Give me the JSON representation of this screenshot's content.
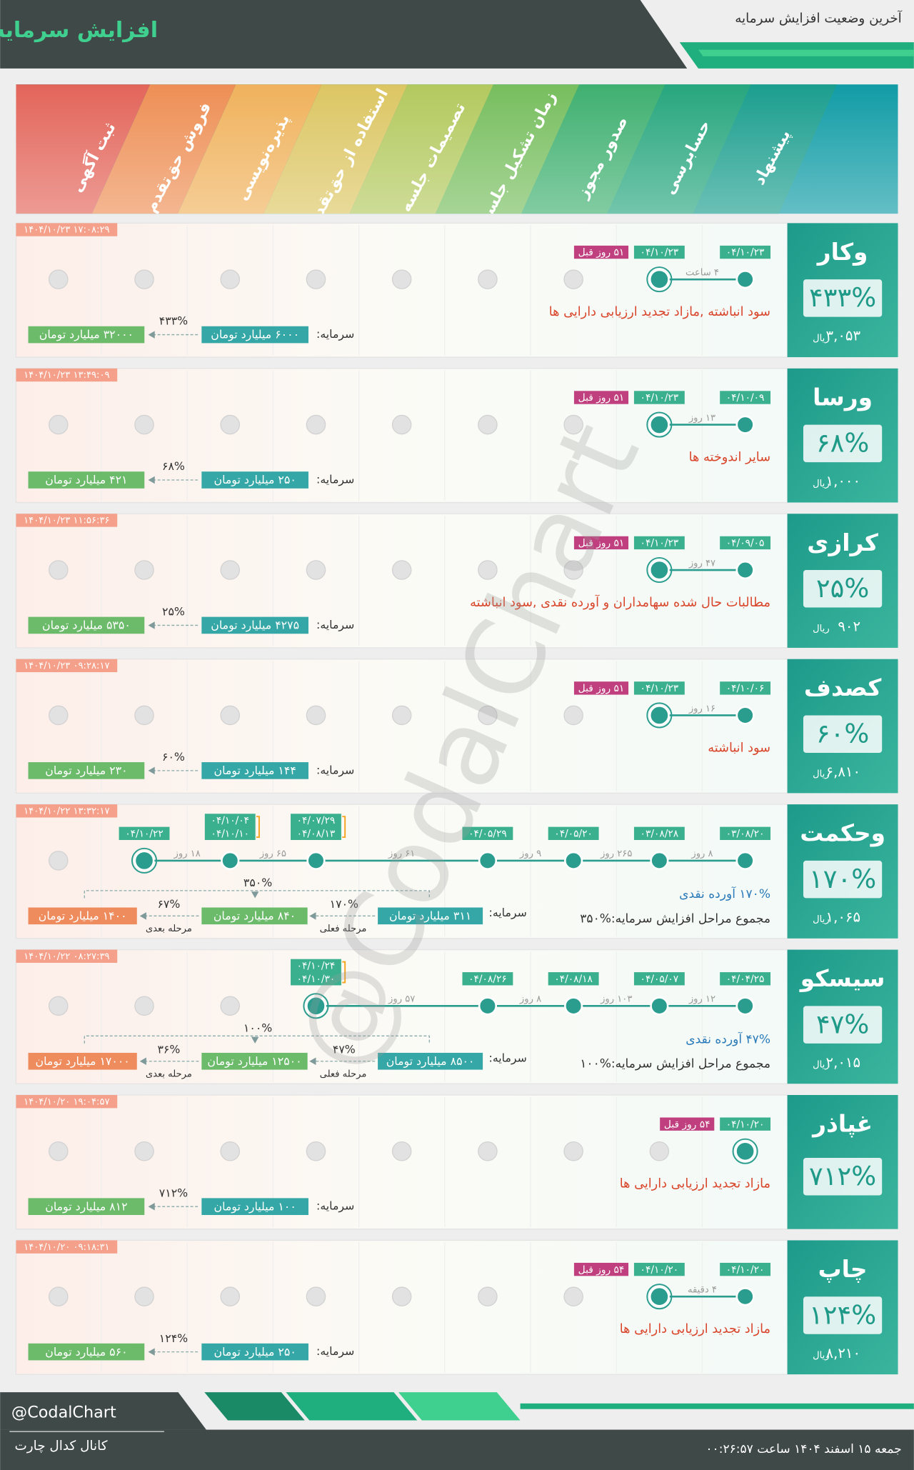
{
  "header": {
    "title": "افزایش سرمایه",
    "subtitle": "آخرین وضعیت افزایش سرمایه"
  },
  "stages": [
    "پیشنهاد",
    "حسابرسی",
    "صدور مجوز",
    "زمان تشکیل جلسه",
    "تصمیمات جلسه",
    "استفاده از حق‌تقدم",
    "پذیره‌نویسی",
    "فروش حق‌تقدم",
    "ثبت آگهی"
  ],
  "labels": {
    "currency": "ریال",
    "capital": "سرمایه:",
    "current_step": "مرحله فعلی",
    "next_step": "مرحله بعدی"
  },
  "cards": [
    {
      "symbol": "وکار",
      "percent": "۴۳۳%",
      "price": "۳,۰۵۳",
      "timestamp": "۱۴۰۴/۱۰/۲۳ ۱۷:۰۸:۲۹",
      "timeline": [
        [
          "۰۴/۱۰/۲۳"
        ],
        [
          "۰۴/۱۰/۲۳"
        ],
        null,
        null,
        null,
        null,
        null,
        null,
        null
      ],
      "ago": "۵۱ روز قبل",
      "durations": [
        "۴ ساعت"
      ],
      "description": "سود انباشته ,مازاد تجدید ارزیابی دارایی ها",
      "capital": {
        "from": "۶۰۰۰ میلیارد تومان",
        "percent": "۴۳۳%",
        "to": "۳۲۰۰۰ میلیارد تومان"
      }
    },
    {
      "symbol": "ورسا",
      "percent": "۶۸%",
      "price": "۱,۰۰۰",
      "timestamp": "۱۴۰۴/۱۰/۲۳ ۱۳:۴۹:۰۹",
      "timeline": [
        [
          "۰۴/۱۰/۰۹"
        ],
        [
          "۰۴/۱۰/۲۳"
        ],
        null,
        null,
        null,
        null,
        null,
        null,
        null
      ],
      "ago": "۵۱ روز قبل",
      "durations": [
        "۱۳ روز"
      ],
      "description": "سایر اندوخته ها",
      "capital": {
        "from": "۲۵۰ میلیارد تومان",
        "percent": "۶۸%",
        "to": "۴۲۱ میلیارد تومان"
      }
    },
    {
      "symbol": "کرازی",
      "percent": "۲۵%",
      "price": "۹۰۲",
      "timestamp": "۱۴۰۴/۱۰/۲۳ ۱۱:۵۶:۳۶",
      "timeline": [
        [
          "۰۴/۰۹/۰۵"
        ],
        [
          "۰۴/۱۰/۲۳"
        ],
        null,
        null,
        null,
        null,
        null,
        null,
        null
      ],
      "ago": "۵۱ روز قبل",
      "durations": [
        "۴۷ روز"
      ],
      "description": "مطالبات حال شده سهامداران و آورده نقدی ,سود انباشته",
      "capital": {
        "from": "۴۲۷۵ میلیارد تومان",
        "percent": "۲۵%",
        "to": "۵۳۵۰ میلیارد تومان"
      }
    },
    {
      "symbol": "کصدف",
      "percent": "۶۰%",
      "price": "۶,۸۱۰",
      "timestamp": "۱۴۰۴/۱۰/۲۳ ۰۹:۲۸:۱۷",
      "timeline": [
        [
          "۰۴/۱۰/۰۶"
        ],
        [
          "۰۴/۱۰/۲۳"
        ],
        null,
        null,
        null,
        null,
        null,
        null,
        null
      ],
      "ago": "۵۱ روز قبل",
      "durations": [
        "۱۶ روز"
      ],
      "description": "سود انباشته",
      "capital": {
        "from": "۱۴۴ میلیارد تومان",
        "percent": "۶۰%",
        "to": "۲۳۰ میلیارد تومان"
      }
    },
    {
      "symbol": "وحکمت",
      "percent": "۱۷۰%",
      "price": "۱,۰۶۵",
      "timestamp": "۱۴۰۴/۱۰/۲۲ ۱۳:۳۲:۱۷",
      "timeline": [
        [
          "۰۳/۰۸/۲۰"
        ],
        [
          "۰۳/۰۸/۲۸"
        ],
        [
          "۰۴/۰۵/۲۰"
        ],
        [
          "۰۴/۰۵/۲۹"
        ],
        null,
        [
          "۰۴/۰۷/۲۹",
          "۰۴/۰۸/۱۳"
        ],
        [
          "۰۴/۱۰/۰۴",
          "۰۴/۱۰/۱۰"
        ],
        [
          "۰۴/۱۰/۲۲"
        ],
        null
      ],
      "durations": [
        "۸ روز",
        "۲۶۵ روز",
        "۹ روز",
        "۶۱ روز",
        "۶۵ روز",
        "۱۸ روز"
      ],
      "description": "۱۷۰% آورده نقدی",
      "total": "مجموع مراحل افزایش سرمایه:%۳۵۰",
      "capital": {
        "from": "۳۱۱ میلیارد تومان",
        "percent": "۱۷۰%",
        "to": "۸۴۰ میلیارد تومان",
        "next_percent": "۶۷%",
        "next": "۱۴۰۰ میلیارد تومان",
        "total_percent": "۳۵۰%"
      }
    },
    {
      "symbol": "سیسکو",
      "percent": "۴۷%",
      "price": "۲,۰۱۵",
      "timestamp": "۱۴۰۴/۱۰/۲۲ ۰۸:۲۷:۳۹",
      "timeline": [
        [
          "۰۴/۰۴/۲۵"
        ],
        [
          "۰۴/۰۵/۰۷"
        ],
        [
          "۰۴/۰۸/۱۸"
        ],
        [
          "۰۴/۰۸/۲۶"
        ],
        null,
        [
          "۰۴/۱۰/۲۴",
          "۰۴/۱۰/۳۰"
        ],
        null,
        null,
        null
      ],
      "durations": [
        "۱۲ روز",
        "۱۰۳ روز",
        "۸ روز",
        "۵۷ روز"
      ],
      "description": "۴۷% آورده نقدی",
      "total": "مجموع مراحل افزایش سرمایه:%۱۰۰",
      "capital": {
        "from": "۸۵۰۰ میلیارد تومان",
        "percent": "۴۷%",
        "to": "۱۲۵۰۰ میلیارد تومان",
        "next_percent": "۳۶%",
        "next": "۱۷۰۰۰ میلیارد تومان",
        "total_percent": "۱۰۰%"
      }
    },
    {
      "symbol": "غپاذر",
      "percent": "۷۱۲%",
      "timestamp": "۱۴۰۴/۱۰/۲۰ ۱۹:۰۴:۵۷",
      "timeline": [
        [
          "۰۴/۱۰/۲۰"
        ],
        null,
        null,
        null,
        null,
        null,
        null,
        null,
        null
      ],
      "ago": "۵۴ روز قبل",
      "durations": [],
      "description": "مازاد تجدید ارزیابی دارایی ها",
      "capital": {
        "from": "۱۰۰ میلیارد تومان",
        "percent": "۷۱۲%",
        "to": "۸۱۲ میلیارد تومان"
      }
    },
    {
      "symbol": "چاپ",
      "percent": "۱۲۴%",
      "price": "۸,۲۱۰",
      "timestamp": "۱۴۰۴/۱۰/۲۰ ۰۹:۱۸:۳۱",
      "timeline": [
        [
          "۰۴/۱۰/۲۰"
        ],
        [
          "۰۴/۱۰/۲۰"
        ],
        null,
        null,
        null,
        null,
        null,
        null,
        null
      ],
      "ago": "۵۴ روز قبل",
      "durations": [
        "۴ دقیقه"
      ],
      "description": "مازاد تجدید ارزیابی دارایی ها",
      "capital": {
        "from": "۲۵۰ میلیارد تومان",
        "percent": "۱۲۴%",
        "to": "۵۶۰ میلیارد تومان"
      }
    }
  ],
  "watermark": "@CodalChart",
  "footer": {
    "handle": "@CodalChart",
    "channel": "کانال کدال چارت",
    "datetime": "جمعه ۱۵ اسفند ۱۴۰۴ ساعت ۰۰:۲۶:۵۷"
  }
}
